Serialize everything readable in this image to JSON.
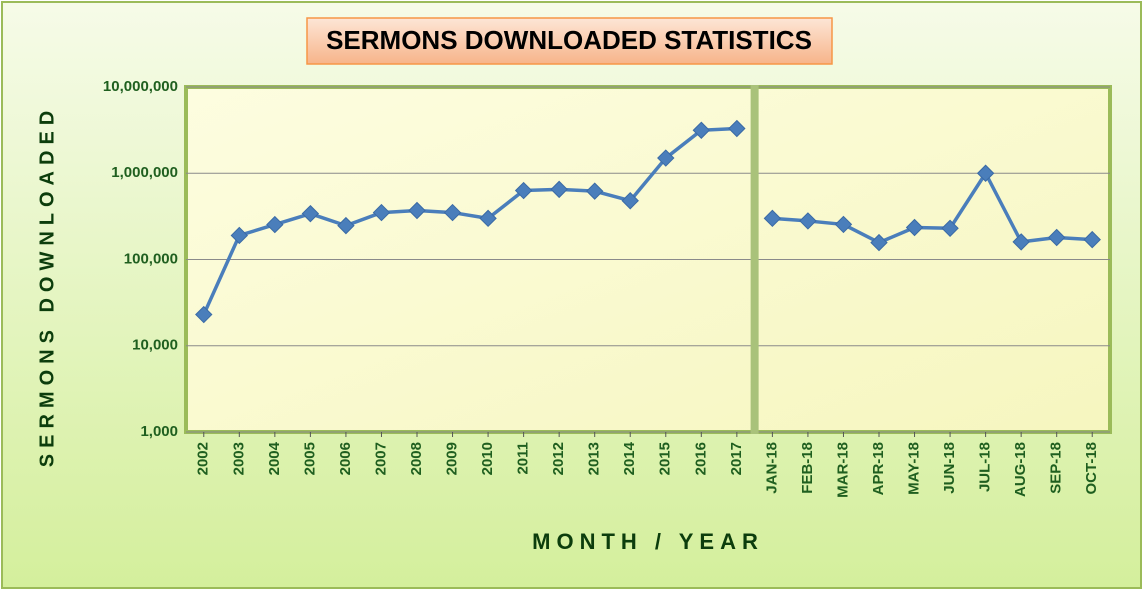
{
  "chart_data": {
    "type": "line",
    "title": "SERMONS DOWNLOADED STATISTICS",
    "x_label": "MONTH / YEAR",
    "y_label": "SERMONS DOWNLOADED",
    "categories": [
      "2002",
      "2003",
      "2004",
      "2005",
      "2006",
      "2007",
      "2008",
      "2009",
      "2010",
      "2011",
      "2012",
      "2013",
      "2014",
      "2015",
      "2016",
      "2017",
      "JAN-18",
      "FEB-18",
      "MAR-18",
      "APR-18",
      "MAY-18",
      "JUN-18",
      "JUL-18",
      "AUG-18",
      "SEP-18",
      "OCT-18"
    ],
    "series": [
      {
        "color": "#4a7ebb",
        "values": [
          23000,
          190000,
          254000,
          340000,
          247000,
          350000,
          370000,
          350000,
          300000,
          630000,
          650000,
          620000,
          480000,
          1500000,
          3150000,
          3300000,
          null,
          null,
          null,
          null,
          null,
          null,
          null,
          null,
          null,
          null
        ]
      },
      {
        "color": "#4a7ebb",
        "values": [
          null,
          null,
          null,
          null,
          null,
          null,
          null,
          null,
          null,
          null,
          null,
          null,
          null,
          null,
          null,
          null,
          300000,
          280000,
          255000,
          157000,
          235000,
          230000,
          1000000,
          160000,
          180000,
          170000
        ]
      }
    ],
    "log_scale": true,
    "grid": true,
    "ylim": [
      1000,
      10000000
    ],
    "yticks": [
      {
        "value": 1000,
        "label": "1,000"
      },
      {
        "value": 10000,
        "label": "10,000"
      },
      {
        "value": 100000,
        "label": "100,000"
      },
      {
        "value": 1000000,
        "label": "1,000,000"
      },
      {
        "value": 10000000,
        "label": "10,000,000"
      }
    ]
  }
}
